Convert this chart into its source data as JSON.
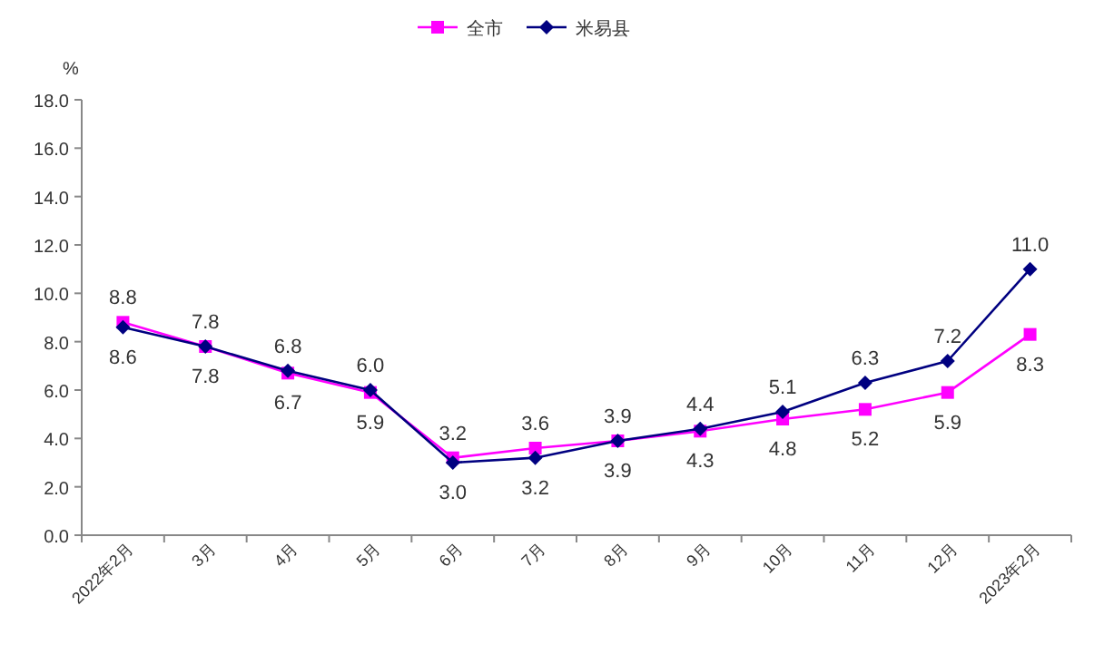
{
  "chart_data": {
    "type": "line",
    "ylabel": "%",
    "legend": "top",
    "line_style": "solid",
    "grid": false,
    "categories": [
      "2022年2月",
      "3月",
      "4月",
      "5月",
      "6月",
      "7月",
      "8月",
      "9月",
      "10月",
      "11月",
      "12月",
      "2023年2月"
    ],
    "ylim": [
      0,
      18
    ],
    "yticks": [
      {
        "value": 0,
        "label": "0.0"
      },
      {
        "value": 2,
        "label": "2.0"
      },
      {
        "value": 4,
        "label": "4.0"
      },
      {
        "value": 6,
        "label": "6.0"
      },
      {
        "value": 8,
        "label": "8.0"
      },
      {
        "value": 10,
        "label": "10.0"
      },
      {
        "value": 12,
        "label": "12.0"
      },
      {
        "value": 14,
        "label": "14.0"
      },
      {
        "value": 16,
        "label": "16.0"
      },
      {
        "value": 18,
        "label": "18.0"
      }
    ],
    "series": [
      {
        "name": "全市",
        "color": "#ff00ff",
        "marker": "square",
        "values": [
          8.8,
          7.8,
          6.7,
          5.9,
          3.2,
          3.6,
          3.9,
          4.3,
          4.8,
          5.2,
          5.9,
          8.3
        ],
        "value_labels": [
          "8.8",
          "7.8",
          "6.7",
          "5.9",
          "3.2",
          "3.6",
          "3.9",
          "4.3",
          "4.8",
          "5.2",
          "5.9",
          "8.3"
        ]
      },
      {
        "name": "米易县",
        "color": "#000080",
        "marker": "diamond",
        "values": [
          8.6,
          7.8,
          6.8,
          6.0,
          3.0,
          3.2,
          3.9,
          4.4,
          5.1,
          6.3,
          7.2,
          11.0
        ],
        "value_labels": [
          "8.6",
          "7.8",
          "6.8",
          "6.0",
          "3.0",
          "3.2",
          "3.9",
          "4.4",
          "5.1",
          "6.3",
          "7.2",
          "11.0"
        ]
      }
    ]
  }
}
